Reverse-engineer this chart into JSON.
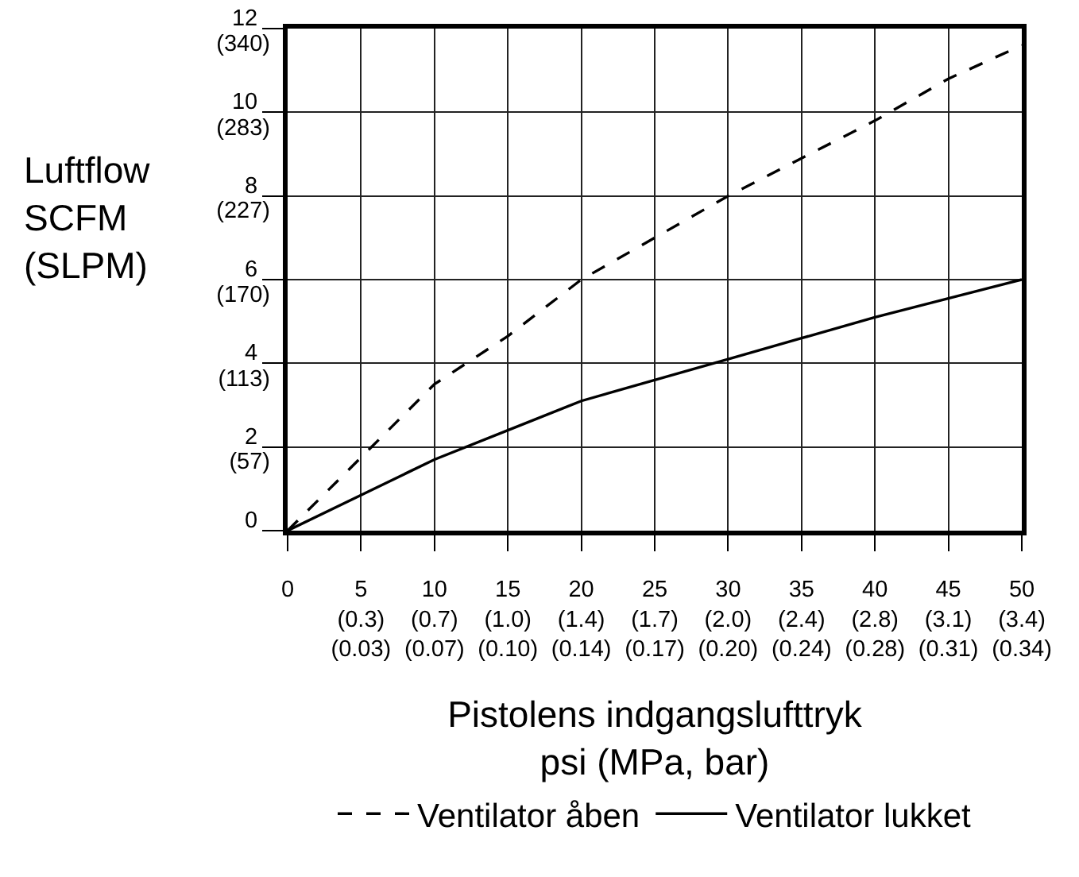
{
  "chart_data": {
    "type": "line",
    "xlabel": "Pistolens indgangslufttryk\npsi (MPa, bar)",
    "y2label": "Luftflow\nSCFM\n(SLPM)",
    "categories": [
      "0",
      "5\n(0.3)\n(0.03)",
      "10\n(0.7)\n(0.07)",
      "15\n(1.0)\n(0.10)",
      "20\n(1.4)\n(0.14)",
      "25\n(1.7)\n(0.17)",
      "30\n(2.0)\n(0.20)",
      "35\n(2.4)\n(0.24)",
      "40\n(2.8)\n(0.28)",
      "45\n(3.1)\n(0.31)",
      "50\n(3.4)\n(0.34)"
    ],
    "series": [
      {
        "name": "Ventilator åben",
        "color": "#000000",
        "line_style": "dashed",
        "values": [
          0,
          1.75,
          3.5,
          4.65,
          6,
          7,
          8,
          8.9,
          9.8,
          10.8,
          11.6
        ]
      },
      {
        "name": "Ventilator lukket",
        "color": "#000000",
        "line_style": "solid",
        "values": [
          0,
          0.85,
          1.7,
          2.4,
          3.1,
          3.6,
          4.1,
          4.6,
          5.1,
          5.55,
          6
        ]
      }
    ],
    "ylim": [
      0,
      12
    ],
    "yticks": [
      0,
      2,
      4,
      6,
      8,
      10,
      12
    ],
    "y2lim": [
      0,
      340
    ],
    "y2ticks": [
      {
        "value": 57,
        "label": "(57)"
      },
      {
        "value": 113,
        "label": "(113)"
      },
      {
        "value": 170,
        "label": "(170)"
      },
      {
        "value": 227,
        "label": "(227)"
      },
      {
        "value": 283,
        "label": "(283)"
      },
      {
        "value": 340,
        "label": "(340)"
      }
    ],
    "grid": true,
    "legend": "bottom",
    "marker": "none"
  }
}
